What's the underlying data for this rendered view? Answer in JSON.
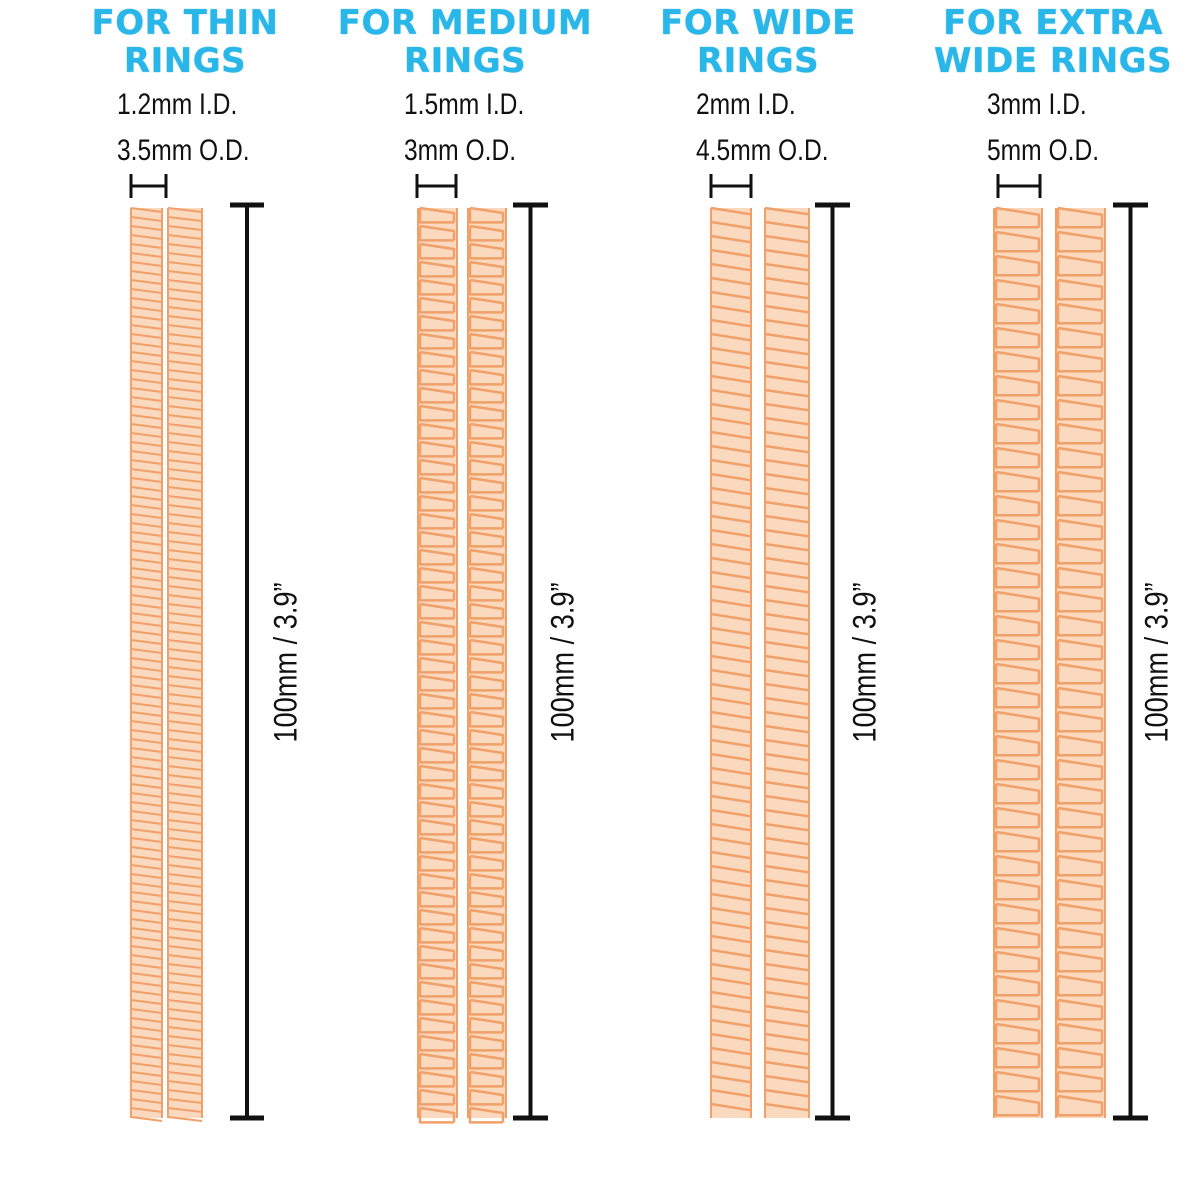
{
  "colors": {
    "title": "#29b6e8",
    "spring": "#f0a068",
    "spring_light": "#fbd9bf",
    "line": "#111111"
  },
  "columns": [
    {
      "title_line1": "FOR THIN",
      "title_line2": "RINGS",
      "inner_diameter": "1.2mm  I.D.",
      "outer_diameter": "3.5mm  O.D.",
      "length_label": "100mm  /  3.9”",
      "pattern": "fine"
    },
    {
      "title_line1": "FOR MEDIUM",
      "title_line2": "RINGS",
      "inner_diameter": "1.5mm  I.D.",
      "outer_diameter": "3mm  O.D.",
      "length_label": "100mm  /  3.9”",
      "pattern": "curb"
    },
    {
      "title_line1": "FOR WIDE",
      "title_line2": "RINGS",
      "inner_diameter": "2mm  I.D.",
      "outer_diameter": "4.5mm  O.D.",
      "length_label": "100mm  /  3.9”",
      "pattern": "coil"
    },
    {
      "title_line1": "FOR EXTRA",
      "title_line2": "WIDE RINGS",
      "inner_diameter": "3mm  I.D.",
      "outer_diameter": "5mm  O.D.",
      "length_label": "100mm  /  3.9”",
      "pattern": "large-curb"
    }
  ]
}
